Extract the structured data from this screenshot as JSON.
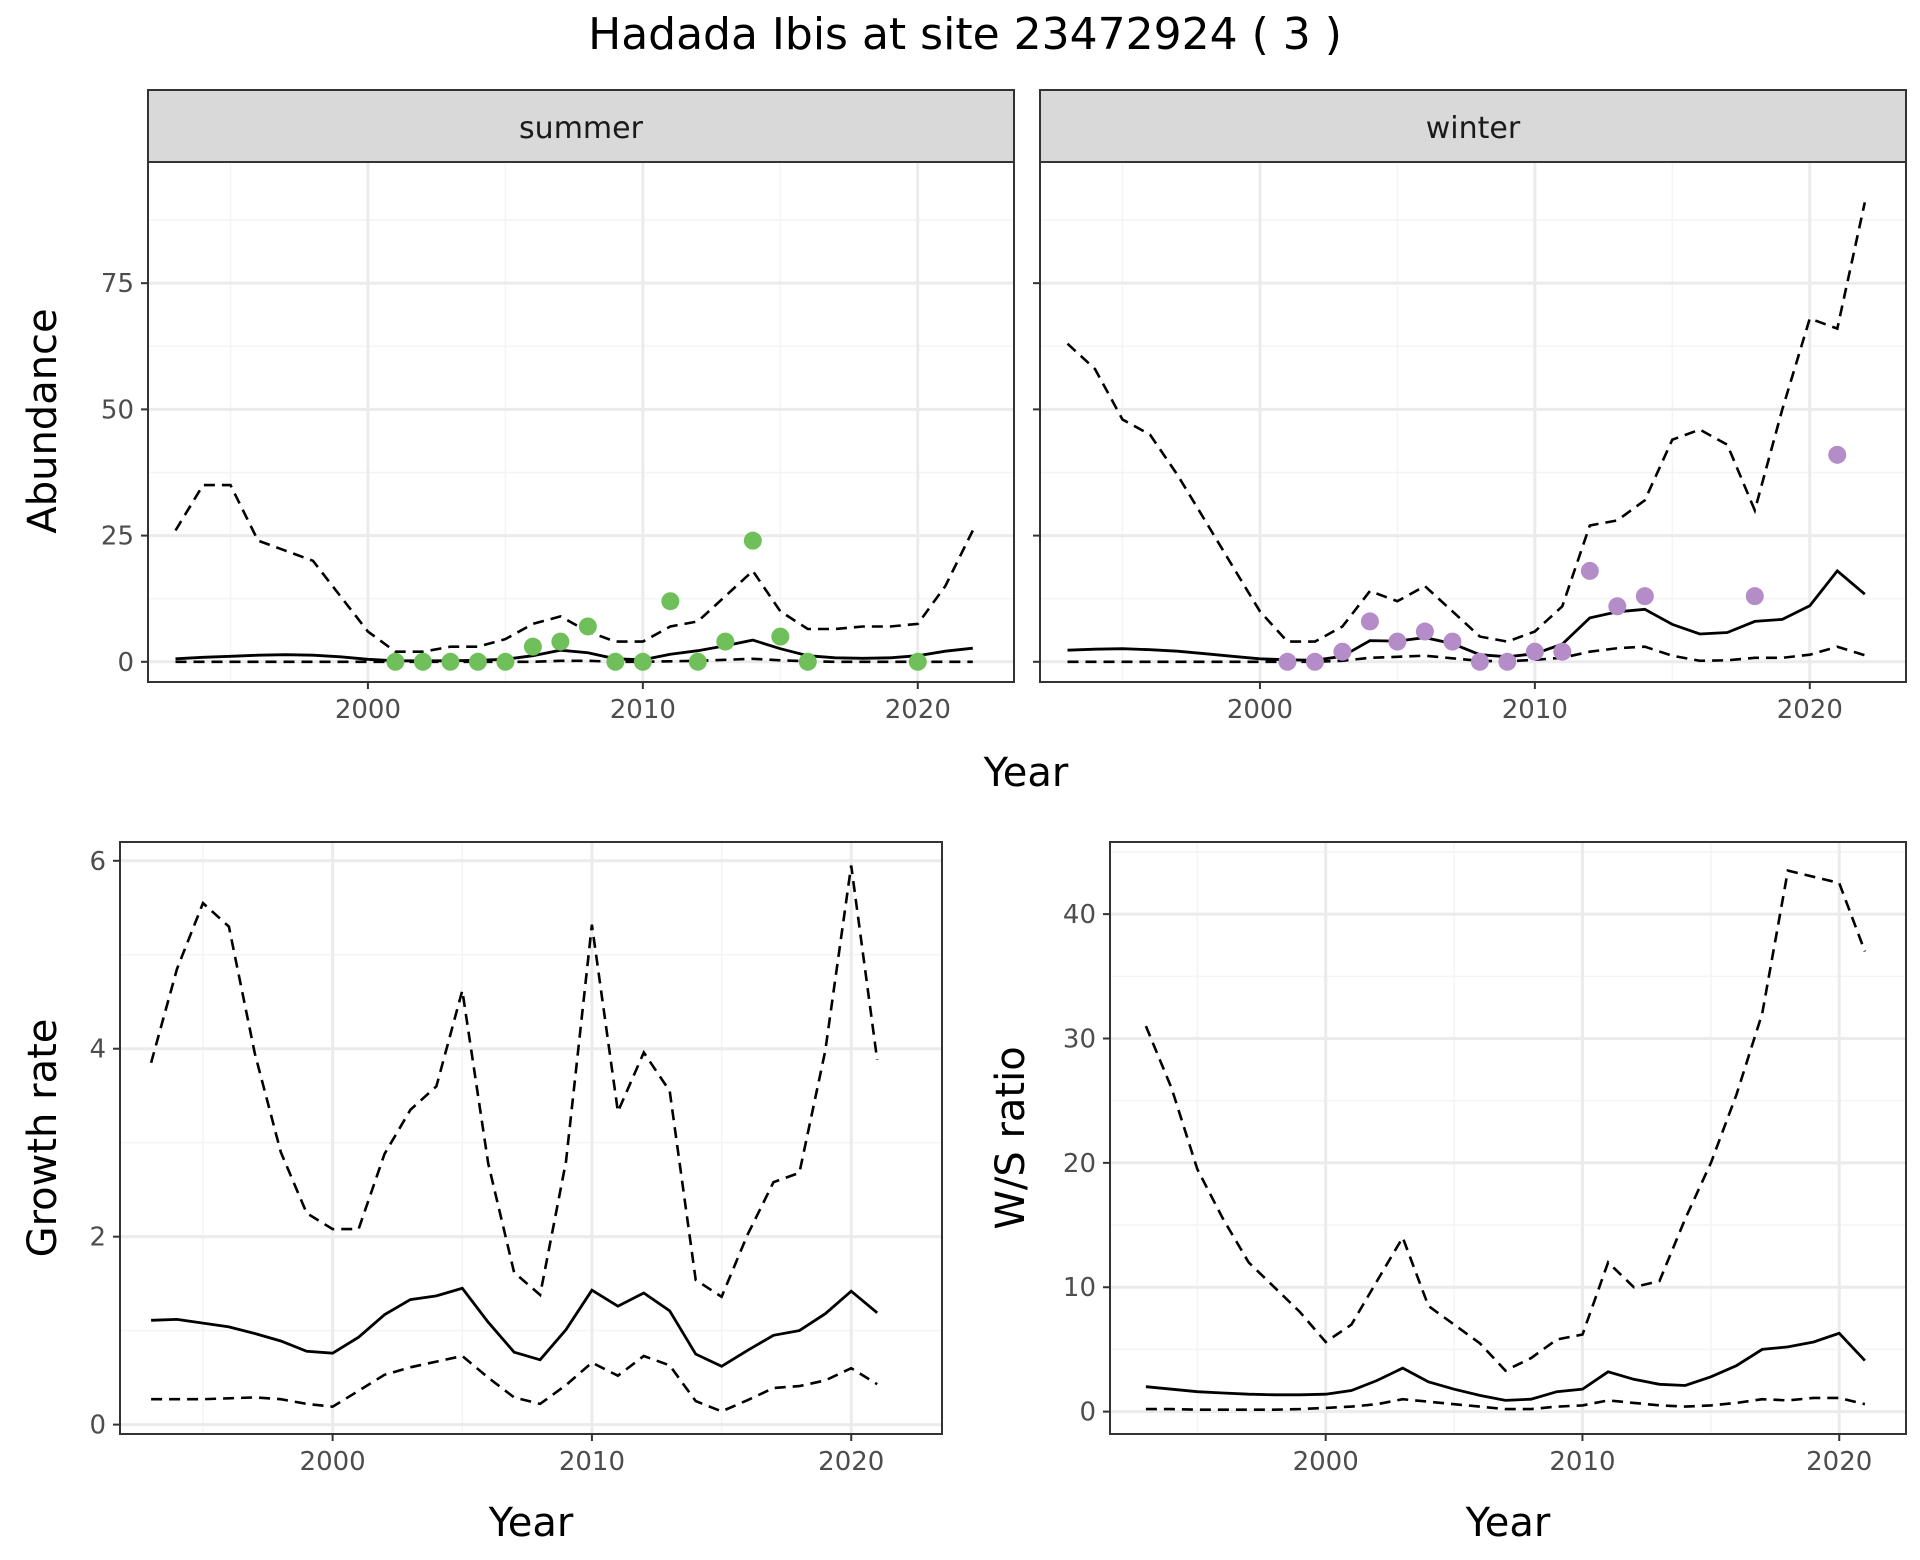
{
  "title": "Hadada Ibis at site 23472924 ( 3 )",
  "colors": {
    "summer_points": "#6fbf5a",
    "winter_points": "#b48cc8",
    "lines": "#000000",
    "grid_major": "#ebebeb",
    "grid_minor": "#f4f4f4",
    "strip_bg": "#d9d9d9",
    "panel_border": "#333333"
  },
  "chart_data": [
    {
      "type": "scatter",
      "facet_label": "summer",
      "xlabel": "Year",
      "ylabel": "Abundance",
      "xlim": [
        1992,
        2023.5
      ],
      "ylim": [
        -4,
        99
      ],
      "xticks": [
        2000,
        2010,
        2020
      ],
      "yticks": [
        0,
        25,
        50,
        75
      ],
      "grid": true,
      "points": {
        "x": [
          2001,
          2002,
          2003,
          2004,
          2005,
          2006,
          2007,
          2008,
          2009,
          2010,
          2011,
          2012,
          2013,
          2014,
          2015,
          2016,
          2020
        ],
        "y": [
          0,
          0,
          0,
          0,
          0,
          3,
          4,
          7,
          0,
          0,
          12,
          0,
          4,
          24,
          5,
          0,
          0
        ]
      },
      "lines": {
        "x": [
          1993,
          1994,
          1995,
          1996,
          1997,
          1998,
          1999,
          2000,
          2001,
          2002,
          2003,
          2004,
          2005,
          2006,
          2007,
          2008,
          2009,
          2010,
          2011,
          2012,
          2013,
          2014,
          2015,
          2016,
          2017,
          2018,
          2019,
          2020,
          2021,
          2022
        ],
        "estimate": [
          0.6,
          0.9,
          1.1,
          1.3,
          1.4,
          1.3,
          1.0,
          0.5,
          0.2,
          0.2,
          0.2,
          0.3,
          0.5,
          1.2,
          2.3,
          1.8,
          0.6,
          0.4,
          1.5,
          2.2,
          3.2,
          4.3,
          2.6,
          1.2,
          0.8,
          0.7,
          0.8,
          1.2,
          2.1,
          2.7
        ],
        "lower": [
          0,
          0,
          0,
          0,
          0,
          0,
          0,
          0,
          0,
          0,
          0,
          0,
          0,
          0,
          0.2,
          0.2,
          0,
          0,
          0.1,
          0.2,
          0.4,
          0.6,
          0.3,
          0.1,
          0,
          0,
          0,
          0,
          0,
          0
        ],
        "upper": [
          26,
          35,
          35,
          24,
          22,
          20,
          13,
          6,
          2,
          2,
          3,
          3,
          4.5,
          7.5,
          9,
          6,
          4,
          4,
          7,
          8,
          13,
          18,
          10,
          6.5,
          6.5,
          7,
          7,
          7.5,
          15,
          26
        ]
      }
    },
    {
      "type": "scatter",
      "facet_label": "winter",
      "xlabel": "Year",
      "ylabel": "",
      "xlim": [
        1992,
        2023.5
      ],
      "ylim": [
        -4,
        99
      ],
      "xticks": [
        2000,
        2010,
        2020
      ],
      "yticks": [
        0,
        25,
        50,
        75
      ],
      "grid": true,
      "points": {
        "x": [
          2001,
          2002,
          2003,
          2004,
          2005,
          2006,
          2007,
          2008,
          2009,
          2010,
          2011,
          2012,
          2013,
          2014,
          2018,
          2021
        ],
        "y": [
          0,
          0,
          2,
          8,
          4,
          6,
          4,
          0,
          0,
          2,
          2,
          18,
          11,
          13,
          13,
          41
        ]
      },
      "lines": {
        "x": [
          1993,
          1994,
          1995,
          1996,
          1997,
          1998,
          1999,
          2000,
          2001,
          2002,
          2003,
          2004,
          2005,
          2006,
          2007,
          2008,
          2009,
          2010,
          2011,
          2012,
          2013,
          2014,
          2015,
          2016,
          2017,
          2018,
          2019,
          2020,
          2021,
          2022
        ],
        "estimate": [
          2.3,
          2.5,
          2.6,
          2.4,
          2.1,
          1.6,
          1.1,
          0.6,
          0.4,
          0.3,
          1.1,
          4.2,
          4.1,
          4.8,
          3.6,
          1.4,
          1.0,
          1.6,
          3.5,
          8.7,
          9.9,
          10.4,
          7.4,
          5.5,
          5.8,
          8.0,
          8.4,
          11.1,
          18.0,
          13.4
        ],
        "lower": [
          0,
          0,
          0,
          0,
          0,
          0,
          0,
          0,
          0,
          0,
          0.2,
          0.8,
          1.0,
          1.2,
          0.7,
          0.2,
          0.1,
          0.4,
          0.8,
          2.0,
          2.7,
          3.0,
          1.2,
          0.2,
          0.3,
          0.8,
          0.8,
          1.4,
          3.0,
          1.3
        ],
        "upper": [
          63,
          58,
          48,
          45,
          37,
          28,
          19,
          10,
          4,
          4,
          7,
          14,
          12,
          15,
          10,
          5,
          4,
          6,
          11,
          27,
          28,
          32,
          44,
          46,
          43,
          30,
          50,
          68,
          66,
          91
        ]
      }
    },
    {
      "type": "line",
      "xlabel": "Year",
      "ylabel": "Growth rate",
      "xlim": [
        1991.8,
        2023.5
      ],
      "ylim": [
        -0.1,
        6.2
      ],
      "xticks": [
        2000,
        2010,
        2020
      ],
      "yticks": [
        0,
        2,
        4,
        6
      ],
      "grid": true,
      "lines": {
        "x": [
          1993,
          1994,
          1995,
          1996,
          1997,
          1998,
          1999,
          2000,
          2001,
          2002,
          2003,
          2004,
          2005,
          2006,
          2007,
          2008,
          2009,
          2010,
          2011,
          2012,
          2013,
          2014,
          2015,
          2016,
          2017,
          2018,
          2019,
          2020,
          2021
        ],
        "estimate": [
          1.11,
          1.12,
          1.08,
          1.04,
          0.97,
          0.89,
          0.78,
          0.76,
          0.93,
          1.17,
          1.33,
          1.37,
          1.45,
          1.09,
          0.77,
          0.69,
          1.01,
          1.43,
          1.26,
          1.4,
          1.21,
          0.75,
          0.62,
          0.79,
          0.95,
          1.0,
          1.18,
          1.42,
          1.19
        ],
        "lower": [
          0.27,
          0.27,
          0.27,
          0.28,
          0.29,
          0.27,
          0.22,
          0.19,
          0.36,
          0.53,
          0.61,
          0.67,
          0.73,
          0.5,
          0.29,
          0.22,
          0.42,
          0.66,
          0.52,
          0.73,
          0.63,
          0.25,
          0.14,
          0.26,
          0.39,
          0.41,
          0.47,
          0.6,
          0.43
        ],
        "upper": [
          3.85,
          4.85,
          5.55,
          5.3,
          3.95,
          2.9,
          2.25,
          2.08,
          2.08,
          2.88,
          3.35,
          3.6,
          4.62,
          2.78,
          1.62,
          1.38,
          2.8,
          5.32,
          3.33,
          3.96,
          3.55,
          1.54,
          1.36,
          2.02,
          2.58,
          2.68,
          3.98,
          5.95,
          3.88
        ]
      }
    },
    {
      "type": "line",
      "xlabel": "Year",
      "ylabel": "W/S ratio",
      "xlim": [
        1991.6,
        2022.6
      ],
      "ylim": [
        -1.8,
        45.8
      ],
      "xticks": [
        2000,
        2010,
        2020
      ],
      "yticks": [
        0,
        10,
        20,
        30,
        40
      ],
      "grid": true,
      "lines": {
        "x": [
          1993,
          1994,
          1995,
          1996,
          1997,
          1998,
          1999,
          2000,
          2001,
          2002,
          2003,
          2004,
          2005,
          2006,
          2007,
          2008,
          2009,
          2010,
          2011,
          2012,
          2013,
          2014,
          2015,
          2016,
          2017,
          2018,
          2019,
          2020,
          2021
        ],
        "estimate": [
          2.0,
          1.8,
          1.6,
          1.5,
          1.4,
          1.35,
          1.35,
          1.4,
          1.7,
          2.5,
          3.5,
          2.4,
          1.8,
          1.3,
          0.9,
          1.0,
          1.6,
          1.8,
          3.2,
          2.6,
          2.2,
          2.1,
          2.8,
          3.7,
          5.0,
          5.2,
          5.6,
          6.3,
          4.1
        ],
        "lower": [
          0.2,
          0.2,
          0.15,
          0.15,
          0.15,
          0.15,
          0.2,
          0.3,
          0.4,
          0.6,
          1.0,
          0.8,
          0.6,
          0.4,
          0.2,
          0.2,
          0.4,
          0.5,
          0.9,
          0.7,
          0.5,
          0.4,
          0.5,
          0.7,
          1.0,
          0.9,
          1.1,
          1.1,
          0.6
        ],
        "upper": [
          31,
          26,
          19.5,
          15.5,
          12,
          10,
          8,
          5.6,
          7,
          10.5,
          14,
          8.5,
          7,
          5.5,
          3.3,
          4.3,
          5.8,
          6.2,
          12,
          10,
          10.5,
          15.5,
          20,
          25.5,
          32,
          43.5,
          43,
          42.5,
          37
        ]
      }
    }
  ]
}
